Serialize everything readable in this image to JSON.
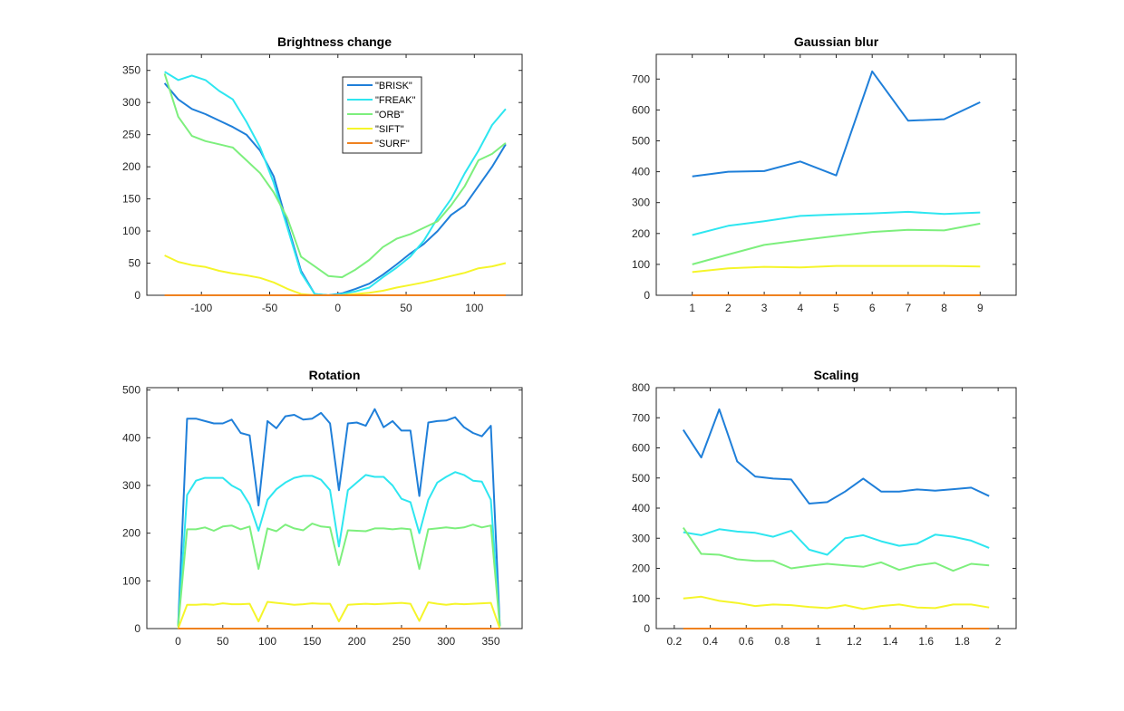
{
  "chart_data": [
    {
      "type": "line",
      "title": "Brightness change",
      "xlabel": "",
      "ylabel": "",
      "xlim": [
        -140,
        135
      ],
      "ylim": [
        0,
        375
      ],
      "xticks": [
        -100,
        -50,
        0,
        50,
        100
      ],
      "yticks": [
        0,
        50,
        100,
        150,
        200,
        250,
        300,
        350
      ],
      "xtick_labels": [
        "-100",
        "-50",
        "0",
        "50",
        "100"
      ],
      "ytick_labels": [
        "0",
        "50",
        "100",
        "150",
        "200",
        "250",
        "300",
        "350"
      ],
      "grid": false,
      "legend": {
        "placement": "top-right-inside",
        "entries": [
          "\"BRISK\"",
          "\"FREAK\"",
          "\"ORB\"",
          "\"SIFT\"",
          "\"SURF\""
        ]
      },
      "x": [
        -127,
        -117,
        -107,
        -97,
        -87,
        -77,
        -67,
        -57,
        -47,
        -37,
        -27,
        -17,
        -7,
        3,
        13,
        23,
        33,
        43,
        53,
        63,
        73,
        83,
        93,
        103,
        113,
        123
      ],
      "series": [
        {
          "name": "\"BRISK\"",
          "values": [
            330,
            305,
            290,
            282,
            272,
            262,
            250,
            225,
            185,
            110,
            38,
            2,
            0,
            3,
            10,
            18,
            32,
            48,
            65,
            80,
            100,
            125,
            140,
            170,
            200,
            235
          ]
        },
        {
          "name": "\"FREAK\"",
          "values": [
            348,
            335,
            342,
            335,
            318,
            305,
            270,
            230,
            175,
            105,
            35,
            2,
            0,
            2,
            6,
            12,
            28,
            43,
            60,
            85,
            120,
            150,
            190,
            225,
            265,
            290
          ]
        },
        {
          "name": "\"ORB\"",
          "values": [
            345,
            278,
            248,
            240,
            235,
            230,
            210,
            190,
            160,
            120,
            60,
            45,
            30,
            28,
            40,
            55,
            75,
            88,
            95,
            105,
            115,
            140,
            170,
            210,
            220,
            237
          ]
        },
        {
          "name": "\"SIFT\"",
          "values": [
            62,
            52,
            47,
            44,
            38,
            34,
            31,
            27,
            20,
            10,
            2,
            0,
            0,
            0,
            2,
            4,
            7,
            12,
            16,
            20,
            25,
            30,
            35,
            42,
            45,
            50
          ]
        },
        {
          "name": "\"SURF\"",
          "values": [
            0,
            0,
            0,
            0,
            0,
            0,
            0,
            0,
            0,
            0,
            0,
            0,
            0,
            0,
            0,
            0,
            0,
            0,
            0,
            0,
            0,
            0,
            0,
            0,
            0,
            0
          ]
        }
      ]
    },
    {
      "type": "line",
      "title": "Gaussian blur",
      "xlabel": "",
      "ylabel": "",
      "xlim": [
        0,
        10
      ],
      "ylim": [
        0,
        780
      ],
      "xticks": [
        1,
        2,
        3,
        4,
        5,
        6,
        7,
        8,
        9
      ],
      "yticks": [
        0,
        100,
        200,
        300,
        400,
        500,
        600,
        700
      ],
      "xtick_labels": [
        "1",
        "2",
        "3",
        "4",
        "5",
        "6",
        "7",
        "8",
        "9"
      ],
      "ytick_labels": [
        "0",
        "100",
        "200",
        "300",
        "400",
        "500",
        "600",
        "700"
      ],
      "grid": false,
      "x": [
        1,
        2,
        3,
        4,
        5,
        6,
        7,
        8,
        9
      ],
      "series": [
        {
          "name": "\"BRISK\"",
          "values": [
            385,
            400,
            402,
            433,
            388,
            725,
            565,
            570,
            625
          ]
        },
        {
          "name": "\"FREAK\"",
          "values": [
            195,
            225,
            240,
            257,
            262,
            265,
            270,
            263,
            268
          ]
        },
        {
          "name": "\"ORB\"",
          "values": [
            100,
            132,
            163,
            178,
            192,
            205,
            212,
            210,
            232
          ]
        },
        {
          "name": "\"SIFT\"",
          "values": [
            75,
            87,
            92,
            90,
            95,
            95,
            95,
            95,
            93
          ]
        },
        {
          "name": "\"SURF\"",
          "values": [
            0,
            0,
            0,
            0,
            0,
            0,
            0,
            0,
            0
          ]
        }
      ]
    },
    {
      "type": "line",
      "title": "Rotation",
      "xlabel": "",
      "ylabel": "",
      "xlim": [
        -35,
        385
      ],
      "ylim": [
        0,
        505
      ],
      "xticks": [
        0,
        50,
        100,
        150,
        200,
        250,
        300,
        350
      ],
      "yticks": [
        0,
        100,
        200,
        300,
        400,
        500
      ],
      "xtick_labels": [
        "0",
        "50",
        "100",
        "150",
        "200",
        "250",
        "300",
        "350"
      ],
      "ytick_labels": [
        "0",
        "100",
        "200",
        "300",
        "400",
        "500"
      ],
      "grid": false,
      "x": [
        0,
        10,
        20,
        30,
        40,
        50,
        60,
        70,
        80,
        90,
        100,
        110,
        120,
        130,
        140,
        150,
        160,
        170,
        180,
        190,
        200,
        210,
        220,
        230,
        240,
        250,
        260,
        270,
        280,
        290,
        300,
        310,
        320,
        330,
        340,
        350,
        360
      ],
      "series": [
        {
          "name": "\"BRISK\"",
          "values": [
            5,
            440,
            440,
            435,
            430,
            430,
            438,
            410,
            405,
            258,
            435,
            420,
            445,
            448,
            438,
            440,
            452,
            430,
            290,
            430,
            432,
            425,
            460,
            422,
            435,
            415,
            415,
            278,
            432,
            435,
            436,
            443,
            422,
            410,
            403,
            425,
            5
          ]
        },
        {
          "name": "\"FREAK\"",
          "values": [
            5,
            280,
            310,
            316,
            316,
            316,
            300,
            290,
            260,
            205,
            270,
            292,
            306,
            316,
            320,
            320,
            312,
            290,
            172,
            290,
            306,
            322,
            318,
            318,
            300,
            272,
            265,
            200,
            270,
            306,
            318,
            328,
            322,
            310,
            308,
            270,
            5
          ]
        },
        {
          "name": "\"ORB\"",
          "values": [
            5,
            208,
            208,
            212,
            205,
            214,
            216,
            208,
            214,
            125,
            210,
            204,
            218,
            210,
            206,
            220,
            214,
            212,
            133,
            206,
            205,
            204,
            210,
            210,
            208,
            210,
            208,
            125,
            208,
            210,
            212,
            210,
            212,
            218,
            212,
            216,
            5
          ]
        },
        {
          "name": "\"SIFT\"",
          "values": [
            0,
            50,
            50,
            51,
            50,
            53,
            51,
            51,
            52,
            15,
            56,
            54,
            52,
            50,
            51,
            53,
            52,
            52,
            15,
            50,
            51,
            52,
            51,
            52,
            53,
            54,
            52,
            16,
            55,
            52,
            50,
            52,
            51,
            52,
            53,
            54,
            0
          ]
        },
        {
          "name": "\"SURF\"",
          "values": [
            0,
            0,
            0,
            0,
            0,
            0,
            0,
            0,
            0,
            0,
            0,
            0,
            0,
            0,
            0,
            0,
            0,
            0,
            0,
            0,
            0,
            0,
            0,
            0,
            0,
            0,
            0,
            0,
            0,
            0,
            0,
            0,
            0,
            0,
            0,
            0,
            0
          ]
        }
      ]
    },
    {
      "type": "line",
      "title": "Scaling",
      "xlabel": "",
      "ylabel": "",
      "xlim": [
        0.1,
        2.1
      ],
      "ylim": [
        0,
        800
      ],
      "xticks": [
        0.2,
        0.4,
        0.6,
        0.8,
        1,
        1.2,
        1.4,
        1.6,
        1.8,
        2
      ],
      "yticks": [
        0,
        100,
        200,
        300,
        400,
        500,
        600,
        700,
        800
      ],
      "xtick_labels": [
        "0.2",
        "0.4",
        "0.6",
        "0.8",
        "1",
        "1.2",
        "1.4",
        "1.6",
        "1.8",
        "2"
      ],
      "ytick_labels": [
        "0",
        "100",
        "200",
        "300",
        "400",
        "500",
        "600",
        "700",
        "800"
      ],
      "grid": false,
      "x": [
        0.25,
        0.35,
        0.45,
        0.55,
        0.65,
        0.75,
        0.85,
        0.95,
        1.05,
        1.15,
        1.25,
        1.35,
        1.45,
        1.55,
        1.65,
        1.75,
        1.85,
        1.95
      ],
      "series": [
        {
          "name": "\"BRISK\"",
          "values": [
            660,
            568,
            728,
            555,
            505,
            498,
            495,
            415,
            420,
            455,
            498,
            455,
            455,
            462,
            458,
            463,
            468,
            440
          ]
        },
        {
          "name": "\"FREAK\"",
          "values": [
            320,
            310,
            330,
            322,
            318,
            305,
            325,
            262,
            245,
            300,
            310,
            290,
            275,
            282,
            312,
            305,
            292,
            268
          ]
        },
        {
          "name": "\"ORB\"",
          "values": [
            335,
            248,
            245,
            230,
            225,
            225,
            200,
            208,
            215,
            210,
            205,
            220,
            195,
            210,
            218,
            192,
            215,
            210
          ]
        },
        {
          "name": "\"SIFT\"",
          "values": [
            100,
            106,
            92,
            85,
            75,
            80,
            78,
            72,
            68,
            78,
            65,
            75,
            80,
            70,
            68,
            80,
            80,
            70
          ]
        },
        {
          "name": "\"SURF\"",
          "values": [
            0,
            0,
            0,
            0,
            0,
            0,
            0,
            0,
            0,
            0,
            0,
            0,
            0,
            0,
            0,
            0,
            0,
            0
          ]
        }
      ]
    }
  ],
  "colors": {
    "\"BRISK\"": "#1f7fd9",
    "\"FREAK\"": "#2ee6f0",
    "\"ORB\"": "#7def7d",
    "\"SIFT\"": "#f5f52a",
    "\"SURF\"": "#ef8220"
  }
}
